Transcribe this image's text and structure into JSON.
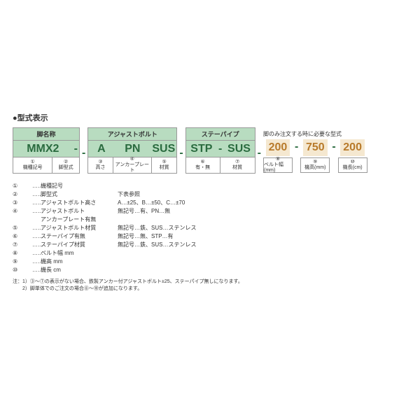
{
  "title": "●型式表示",
  "rightHeader": "脚のみ注文する時に必要な型式",
  "box1": {
    "hdr": "脚名称",
    "vals": [
      "MMX2",
      "-"
    ],
    "cells": [
      {
        "n": "①",
        "t": "機種記号"
      },
      {
        "n": "②",
        "t": "脚型式"
      }
    ]
  },
  "box2": {
    "hdr": "アジャストボルト",
    "vals": [
      "A",
      "PN",
      "SUS"
    ],
    "cells": [
      {
        "n": "③",
        "t": "高さ"
      },
      {
        "n": "④",
        "t": "アンカープレート"
      },
      {
        "n": "⑤",
        "t": "材質"
      }
    ]
  },
  "box3": {
    "hdr": "ステーパイプ",
    "vals": [
      "STP",
      "-",
      "SUS"
    ],
    "cells": [
      {
        "n": "⑥",
        "t": "有・無"
      },
      {
        "n": "⑦",
        "t": "材質"
      }
    ]
  },
  "tall": [
    {
      "v": "200",
      "n": "⑧",
      "t": "ベルト幅(mm)"
    },
    {
      "v": "750",
      "n": "⑨",
      "t": "機高(mm)"
    },
    {
      "v": "200",
      "n": "⑩",
      "t": "機長(cm)"
    }
  ],
  "legend": [
    {
      "n": "①",
      "t": "機種記号",
      "v": ""
    },
    {
      "n": "②",
      "t": "脚型式",
      "v": "下表参照"
    },
    {
      "n": "③",
      "t": "アジャストボルト高さ",
      "v": "A…±25、B…±50、C…±70"
    },
    {
      "n": "④",
      "t": "アジャストボルト\nアンカープレート有無",
      "v": "無記号…有、PN…無"
    },
    {
      "n": "⑤",
      "t": "アジャストボルト材質",
      "v": "無記号…鉄、SUS…ステンレス"
    },
    {
      "n": "⑥",
      "t": "ステーパイプ有無",
      "v": "無記号…無、STP…有"
    },
    {
      "n": "⑦",
      "t": "ステーパイプ材質",
      "v": "無記号…鉄、SUS…ステンレス"
    },
    {
      "n": "⑧",
      "t": "ベルト幅 mm",
      "v": ""
    },
    {
      "n": "⑨",
      "t": "機高 mm",
      "v": ""
    },
    {
      "n": "⑩",
      "t": "機長 cm",
      "v": ""
    }
  ],
  "notes": [
    "注：1）③〜⑦の表示がない場合、鉄製アンカー付アジャストボルト±25、ステーパイプ無しになります。",
    "　　2）脚単体でのご注文の場合⑧〜⑩が追加になります。"
  ]
}
